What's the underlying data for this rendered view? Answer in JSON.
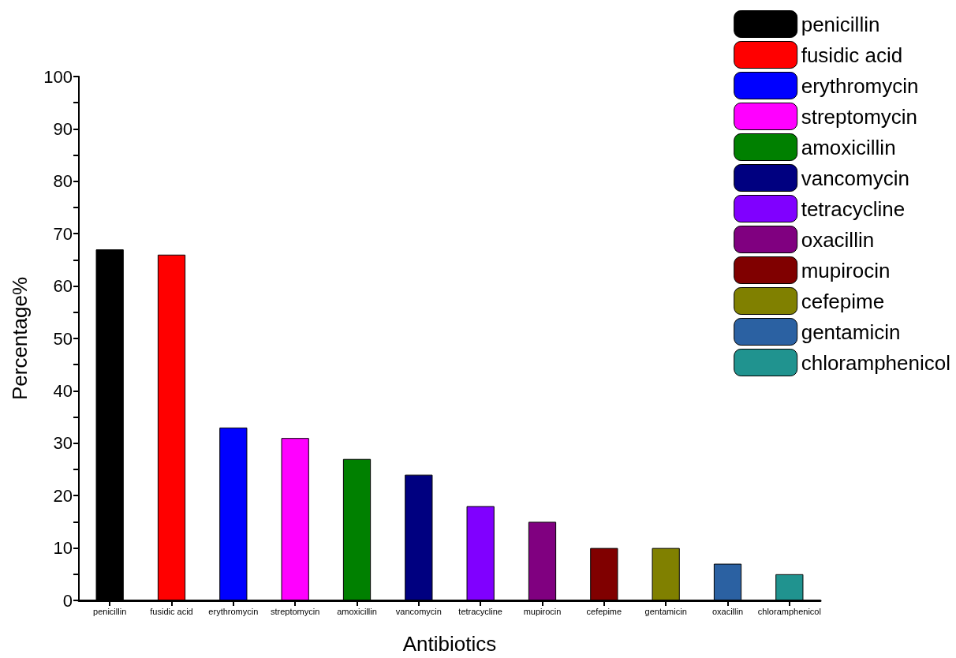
{
  "chart_data": {
    "type": "bar",
    "xlabel": "Antibiotics",
    "ylabel": "Percentage%",
    "categories": [
      "penicillin",
      "fusidic acid",
      "erythromycin",
      "streptomycin",
      "amoxicillin",
      "vancomycin",
      "tetracycline",
      "mupirocin",
      "cefepime",
      "gentamicin",
      "oxacillin",
      "chloramphenicol"
    ],
    "series": [
      {
        "name": "penicillin",
        "color": "#000000",
        "values": [
          67,
          null,
          null,
          null,
          null,
          null,
          null,
          null,
          null,
          null,
          null,
          null
        ]
      },
      {
        "name": "fusidic acid",
        "color": "#ff0000",
        "values": [
          null,
          66,
          null,
          null,
          null,
          null,
          null,
          null,
          null,
          null,
          null,
          null
        ]
      },
      {
        "name": "erythromycin",
        "color": "#0000ff",
        "values": [
          null,
          null,
          33,
          null,
          null,
          null,
          null,
          null,
          null,
          null,
          null,
          null
        ]
      },
      {
        "name": "streptomycin",
        "color": "#ff00ff",
        "values": [
          null,
          null,
          null,
          31,
          null,
          null,
          null,
          null,
          null,
          null,
          null,
          null
        ]
      },
      {
        "name": "amoxicillin",
        "color": "#008000",
        "values": [
          null,
          null,
          null,
          null,
          27,
          null,
          null,
          null,
          null,
          null,
          null,
          null
        ]
      },
      {
        "name": "vancomycin",
        "color": "#000080",
        "values": [
          null,
          null,
          null,
          null,
          null,
          24,
          null,
          null,
          null,
          null,
          null,
          null
        ]
      },
      {
        "name": "tetracycline",
        "color": "#8000ff",
        "values": [
          null,
          null,
          null,
          null,
          null,
          null,
          18,
          null,
          null,
          null,
          null,
          null
        ]
      },
      {
        "name": "oxacillin",
        "color": "#800080",
        "values": [
          null,
          null,
          null,
          null,
          null,
          null,
          null,
          15,
          null,
          null,
          null,
          null
        ]
      },
      {
        "name": "mupirocin",
        "color": "#800000",
        "values": [
          null,
          null,
          null,
          null,
          null,
          null,
          null,
          null,
          10,
          null,
          null,
          null
        ]
      },
      {
        "name": "cefepime",
        "color": "#808000",
        "values": [
          null,
          null,
          null,
          null,
          null,
          null,
          null,
          null,
          null,
          10,
          null,
          null
        ]
      },
      {
        "name": "gentamicin",
        "color": "#2b61a2",
        "values": [
          null,
          null,
          null,
          null,
          null,
          null,
          null,
          null,
          null,
          null,
          7,
          null
        ]
      },
      {
        "name": "chloramphenicol",
        "color": "#20938f",
        "values": [
          null,
          null,
          null,
          null,
          null,
          null,
          null,
          null,
          null,
          null,
          null,
          5
        ]
      }
    ],
    "ylim": [
      0,
      100
    ],
    "yticks": [
      0,
      {
        "value": 5,
        "label": null
      },
      10,
      {
        "value": 15,
        "label": null
      },
      20,
      {
        "value": 25,
        "label": null
      },
      30,
      {
        "value": 35,
        "label": null
      },
      40,
      {
        "value": 45,
        "label": null
      },
      50,
      {
        "value": 55,
        "label": null
      },
      60,
      {
        "value": 65,
        "label": null
      },
      70,
      {
        "value": 75,
        "label": null
      },
      80,
      {
        "value": 85,
        "label": null
      },
      90,
      {
        "value": 95,
        "label": null
      },
      100
    ],
    "grid": false,
    "legend": "top right"
  }
}
